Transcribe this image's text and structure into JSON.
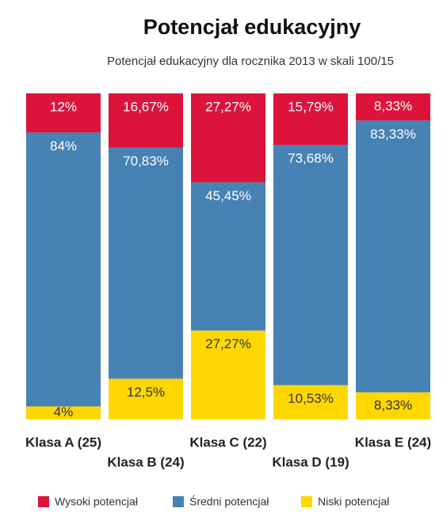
{
  "chart_data": {
    "type": "stacked_bar",
    "title": "Potencjał edukacyjny",
    "subtitle": "Potencjał edukacyjny dla rocznika 2013 w skali 100/15",
    "categories": [
      "Klasa A (25)",
      "Klasa B (24)",
      "Klasa C (22)",
      "Klasa D (19)",
      "Klasa E (24)"
    ],
    "ylim": [
      0,
      100
    ],
    "series": [
      {
        "name": "Wysoki potencjał",
        "color": "#dc143c",
        "values": [
          12,
          16.67,
          27.27,
          15.79,
          8.33
        ],
        "value_labels": [
          "12%",
          "16,67%",
          "27,27%",
          "15,79%",
          "8,33%"
        ]
      },
      {
        "name": "Średni potencjał",
        "color": "#4682b4",
        "values": [
          84,
          70.83,
          45.45,
          73.68,
          83.33
        ],
        "value_labels": [
          "84%",
          "70,83%",
          "45,45%",
          "73,68%",
          "83,33%"
        ]
      },
      {
        "name": "Niski potencjał",
        "color": "#ffd700",
        "values": [
          4,
          12.5,
          27.27,
          10.53,
          8.33
        ],
        "value_labels": [
          "4%",
          "12,5%",
          "27,27%",
          "10,53%",
          "8,33%"
        ]
      }
    ]
  }
}
